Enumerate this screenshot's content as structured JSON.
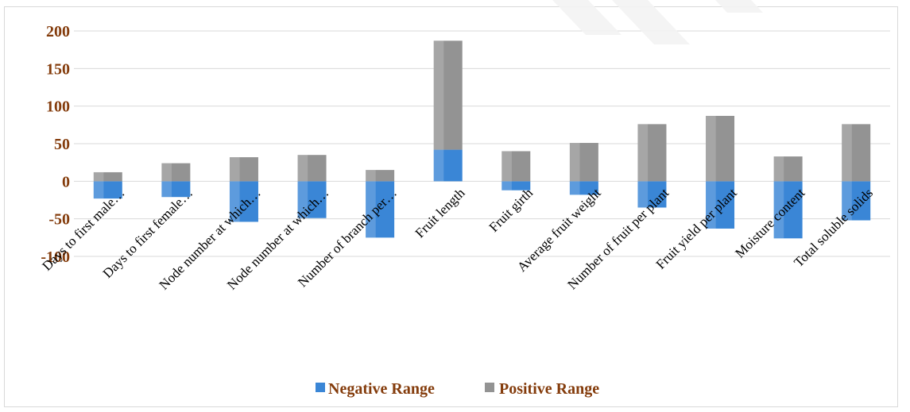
{
  "chart_data": {
    "type": "bar",
    "stacked": true,
    "title": "",
    "xlabel": "",
    "ylabel": "",
    "ylim": [
      -100,
      200
    ],
    "yticks": [
      200,
      150,
      100,
      50,
      0,
      -50,
      -100
    ],
    "grid": true,
    "legend_position": "bottom",
    "categories": [
      "Days to first male…",
      "Days to first female…",
      "Node number at which…",
      "Node number at which…",
      "Number of branch per…",
      "Fruit length",
      "Fruit girth",
      "Average fruit weight",
      "Number of fruit per plant",
      "Fruit yield per plant",
      "Moisture content",
      "Total soluble solids"
    ],
    "series": [
      {
        "name": "Negative Range",
        "color": "#3a86d6",
        "values": [
          -23,
          -21,
          -54,
          -49,
          -75,
          42,
          -12,
          -18,
          -35,
          -63,
          -76,
          -52
        ]
      },
      {
        "name": "Positive Range",
        "color": "#939393",
        "values": [
          12,
          24,
          32,
          35,
          15,
          145,
          40,
          51,
          76,
          87,
          33,
          76
        ]
      }
    ],
    "colors": {
      "tick_label": "#843c0c",
      "grid": "#d9d9d9"
    }
  }
}
